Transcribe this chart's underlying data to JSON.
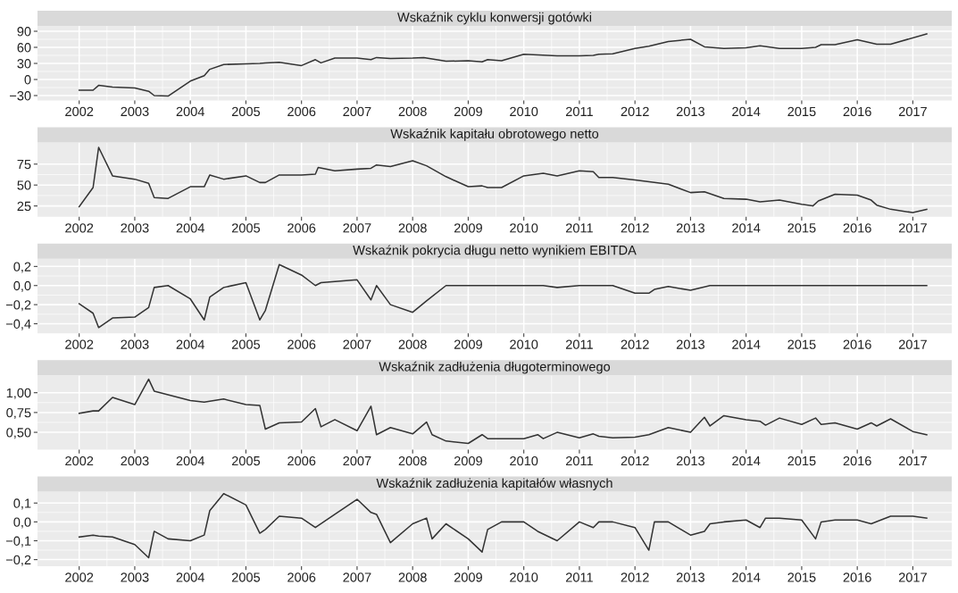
{
  "chart_data": [
    {
      "type": "line",
      "title": "Wskaźnik cyklu konwersji gotówki",
      "color": "#333333",
      "grid": true,
      "x": [
        2002.0,
        2002.25,
        2002.35,
        2002.6,
        2003.0,
        2003.25,
        2003.35,
        2003.6,
        2004.0,
        2004.25,
        2004.35,
        2004.6,
        2005.0,
        2005.25,
        2005.35,
        2005.6,
        2006.0,
        2006.25,
        2006.35,
        2006.6,
        2007.0,
        2007.25,
        2007.35,
        2007.6,
        2008.0,
        2008.2,
        2008.6,
        2009.0,
        2009.25,
        2009.35,
        2009.6,
        2010.0,
        2010.6,
        2011.0,
        2011.25,
        2011.35,
        2011.6,
        2012.0,
        2012.25,
        2012.6,
        2013.0,
        2013.25,
        2013.6,
        2014.0,
        2014.25,
        2014.6,
        2015.0,
        2015.25,
        2015.35,
        2015.6,
        2016.0,
        2016.35,
        2016.6,
        2017.25
      ],
      "values": [
        -20,
        -20,
        -11,
        -14,
        -16,
        -22,
        -30,
        -31,
        -3,
        7,
        19,
        28,
        29,
        30,
        31,
        32,
        26,
        37,
        31,
        40,
        40,
        37,
        41,
        39,
        40,
        41,
        34,
        35,
        33,
        37,
        35,
        47,
        44,
        44,
        45,
        47,
        48,
        58,
        62,
        71,
        75,
        61,
        58,
        59,
        63,
        58,
        58,
        60,
        65,
        65,
        74,
        66,
        66,
        85
      ],
      "xlim": [
        2001.25,
        2017.7
      ],
      "xticks": [
        2002,
        2003,
        2004,
        2005,
        2006,
        2007,
        2008,
        2009,
        2010,
        2011,
        2012,
        2013,
        2014,
        2015,
        2016,
        2017
      ],
      "ylim": [
        -39,
        100
      ],
      "yticks": [
        {
          "value": -30,
          "label": "−30"
        },
        0,
        30,
        60,
        90
      ]
    },
    {
      "type": "line",
      "title": "Wskaźnik kapitału obrotowego netto",
      "color": "#333333",
      "grid": true,
      "x": [
        2002.0,
        2002.25,
        2002.35,
        2002.6,
        2003.0,
        2003.25,
        2003.35,
        2003.6,
        2004.0,
        2004.25,
        2004.35,
        2004.6,
        2005.0,
        2005.25,
        2005.35,
        2005.6,
        2006.0,
        2006.25,
        2006.3,
        2006.6,
        2007.0,
        2007.25,
        2007.35,
        2007.6,
        2008.0,
        2008.25,
        2008.6,
        2009.0,
        2009.25,
        2009.35,
        2009.6,
        2010.0,
        2010.35,
        2010.6,
        2011.0,
        2011.25,
        2011.35,
        2011.6,
        2012.0,
        2012.6,
        2013.0,
        2013.25,
        2013.6,
        2014.0,
        2014.25,
        2014.6,
        2015.0,
        2015.2,
        2015.3,
        2015.6,
        2016.0,
        2016.25,
        2016.35,
        2016.6,
        2017.0,
        2017.25
      ],
      "values": [
        24,
        47,
        95,
        61,
        57,
        52,
        35,
        34,
        48,
        48,
        62,
        57,
        61,
        53,
        53,
        62,
        62,
        63,
        71,
        67,
        69,
        70,
        74,
        72,
        79,
        73,
        60,
        48,
        49,
        47,
        47,
        61,
        64,
        61,
        67,
        66,
        59,
        59,
        56,
        51,
        41,
        42,
        34,
        33,
        30,
        32,
        27,
        25,
        31,
        39,
        38,
        32,
        26,
        21,
        17,
        21
      ],
      "xlim": [
        2001.25,
        2017.7
      ],
      "xticks": [
        2002,
        2003,
        2004,
        2005,
        2006,
        2007,
        2008,
        2009,
        2010,
        2011,
        2012,
        2013,
        2014,
        2015,
        2016,
        2017
      ],
      "ylim": [
        12,
        101
      ],
      "yticks": [
        25,
        50,
        75
      ]
    },
    {
      "type": "line",
      "title": "Wskaźnik pokrycia długu netto wynikiem EBITDA",
      "color": "#333333",
      "grid": true,
      "x": [
        2002.0,
        2002.25,
        2002.35,
        2002.6,
        2003.0,
        2003.25,
        2003.35,
        2003.6,
        2004.0,
        2004.25,
        2004.35,
        2004.6,
        2005.0,
        2005.25,
        2005.35,
        2005.6,
        2006.0,
        2006.25,
        2006.35,
        2007.0,
        2007.25,
        2007.35,
        2007.6,
        2008.0,
        2008.25,
        2008.6,
        2010.35,
        2010.6,
        2011.0,
        2011.6,
        2012.0,
        2012.25,
        2012.35,
        2012.6,
        2013.0,
        2013.35,
        2017.25
      ],
      "values": [
        -0.19,
        -0.29,
        -0.44,
        -0.34,
        -0.33,
        -0.23,
        -0.02,
        0.0,
        -0.14,
        -0.36,
        -0.12,
        -0.02,
        0.03,
        -0.36,
        -0.26,
        0.22,
        0.11,
        0.0,
        0.03,
        0.06,
        -0.15,
        0.0,
        -0.2,
        -0.28,
        -0.16,
        0.0,
        0.0,
        -0.02,
        0.0,
        0.0,
        -0.08,
        -0.08,
        -0.04,
        -0.01,
        -0.05,
        0.0,
        0.0
      ],
      "xlim": [
        2001.25,
        2017.7
      ],
      "xticks": [
        2002,
        2003,
        2004,
        2005,
        2006,
        2007,
        2008,
        2009,
        2010,
        2011,
        2012,
        2013,
        2014,
        2015,
        2016,
        2017
      ],
      "ylim": [
        -0.5,
        0.28
      ],
      "yticks": [
        {
          "value": -0.4,
          "label": "−0,4"
        },
        {
          "value": -0.2,
          "label": "−0,2"
        },
        {
          "value": 0,
          "label": "0,0"
        },
        {
          "value": 0.2,
          "label": "0,2"
        }
      ]
    },
    {
      "type": "line",
      "title": "Wskaźnik zadłużenia długoterminowego",
      "color": "#333333",
      "grid": true,
      "x": [
        2002.0,
        2002.25,
        2002.35,
        2002.6,
        2003.0,
        2003.25,
        2003.35,
        2004.0,
        2004.25,
        2004.6,
        2005.0,
        2005.25,
        2005.35,
        2005.6,
        2006.0,
        2006.25,
        2006.35,
        2006.6,
        2007.0,
        2007.25,
        2007.35,
        2007.6,
        2008.0,
        2008.25,
        2008.35,
        2008.6,
        2009.0,
        2009.25,
        2009.35,
        2010.0,
        2010.25,
        2010.35,
        2010.6,
        2011.0,
        2011.25,
        2011.35,
        2011.6,
        2012.0,
        2012.25,
        2012.6,
        2013.0,
        2013.25,
        2013.35,
        2013.6,
        2014.0,
        2014.25,
        2014.35,
        2014.6,
        2015.0,
        2015.25,
        2015.35,
        2015.6,
        2016.0,
        2016.25,
        2016.35,
        2016.6,
        2017.0,
        2017.25
      ],
      "values": [
        0.74,
        0.77,
        0.77,
        0.94,
        0.85,
        1.17,
        1.02,
        0.9,
        0.88,
        0.92,
        0.85,
        0.84,
        0.54,
        0.62,
        0.63,
        0.8,
        0.57,
        0.66,
        0.52,
        0.83,
        0.47,
        0.56,
        0.48,
        0.63,
        0.47,
        0.39,
        0.36,
        0.47,
        0.42,
        0.42,
        0.47,
        0.42,
        0.5,
        0.43,
        0.48,
        0.45,
        0.43,
        0.44,
        0.47,
        0.56,
        0.5,
        0.69,
        0.58,
        0.71,
        0.66,
        0.64,
        0.59,
        0.68,
        0.6,
        0.68,
        0.6,
        0.62,
        0.54,
        0.62,
        0.58,
        0.67,
        0.51,
        0.47
      ],
      "xlim": [
        2001.25,
        2017.7
      ],
      "xticks": [
        2002,
        2003,
        2004,
        2005,
        2006,
        2007,
        2008,
        2009,
        2010,
        2011,
        2012,
        2013,
        2014,
        2015,
        2016,
        2017
      ],
      "ylim": [
        0.28,
        1.22
      ],
      "yticks": [
        {
          "value": 0.5,
          "label": "0,50"
        },
        {
          "value": 0.75,
          "label": "0,75"
        },
        {
          "value": 1.0,
          "label": "1,00"
        }
      ]
    },
    {
      "type": "line",
      "title": "Wskaźnik zadłużenia kapitałów własnych",
      "color": "#333333",
      "grid": true,
      "x": [
        2002.0,
        2002.25,
        2002.35,
        2002.6,
        2003.0,
        2003.25,
        2003.35,
        2003.6,
        2004.0,
        2004.25,
        2004.35,
        2004.6,
        2005.0,
        2005.25,
        2005.35,
        2005.6,
        2006.0,
        2006.25,
        2006.6,
        2007.0,
        2007.25,
        2007.35,
        2007.6,
        2008.0,
        2008.25,
        2008.35,
        2008.6,
        2009.0,
        2009.25,
        2009.35,
        2009.6,
        2010.0,
        2010.25,
        2010.6,
        2011.0,
        2011.25,
        2011.35,
        2011.6,
        2012.0,
        2012.25,
        2012.35,
        2012.6,
        2013.0,
        2013.25,
        2013.35,
        2013.6,
        2014.0,
        2014.25,
        2014.35,
        2014.6,
        2015.0,
        2015.25,
        2015.35,
        2015.6,
        2016.0,
        2016.25,
        2016.6,
        2017.0,
        2017.25
      ],
      "values": [
        -0.08,
        -0.07,
        -0.075,
        -0.08,
        -0.12,
        -0.19,
        -0.05,
        -0.09,
        -0.1,
        -0.07,
        0.06,
        0.15,
        0.09,
        -0.06,
        -0.04,
        0.03,
        0.02,
        -0.03,
        0.04,
        0.12,
        0.05,
        0.04,
        -0.11,
        -0.01,
        0.02,
        -0.09,
        -0.01,
        -0.09,
        -0.16,
        -0.04,
        0.0,
        0.0,
        -0.05,
        -0.1,
        0.0,
        -0.03,
        0.0,
        0.0,
        -0.03,
        -0.15,
        0.0,
        0.0,
        -0.07,
        -0.05,
        -0.01,
        0.0,
        0.01,
        -0.03,
        0.02,
        0.02,
        0.01,
        -0.09,
        0.0,
        0.01,
        0.01,
        -0.01,
        0.03,
        0.03,
        0.02
      ],
      "xlim": [
        2001.25,
        2017.7
      ],
      "xticks": [
        2002,
        2003,
        2004,
        2005,
        2006,
        2007,
        2008,
        2009,
        2010,
        2011,
        2012,
        2013,
        2014,
        2015,
        2016,
        2017
      ],
      "ylim": [
        -0.235,
        0.16
      ],
      "yticks": [
        {
          "value": -0.2,
          "label": "−0,2"
        },
        {
          "value": -0.1,
          "label": "−0,1"
        },
        {
          "value": 0,
          "label": "0,0"
        },
        {
          "value": 0.1,
          "label": "0,1"
        }
      ]
    }
  ]
}
